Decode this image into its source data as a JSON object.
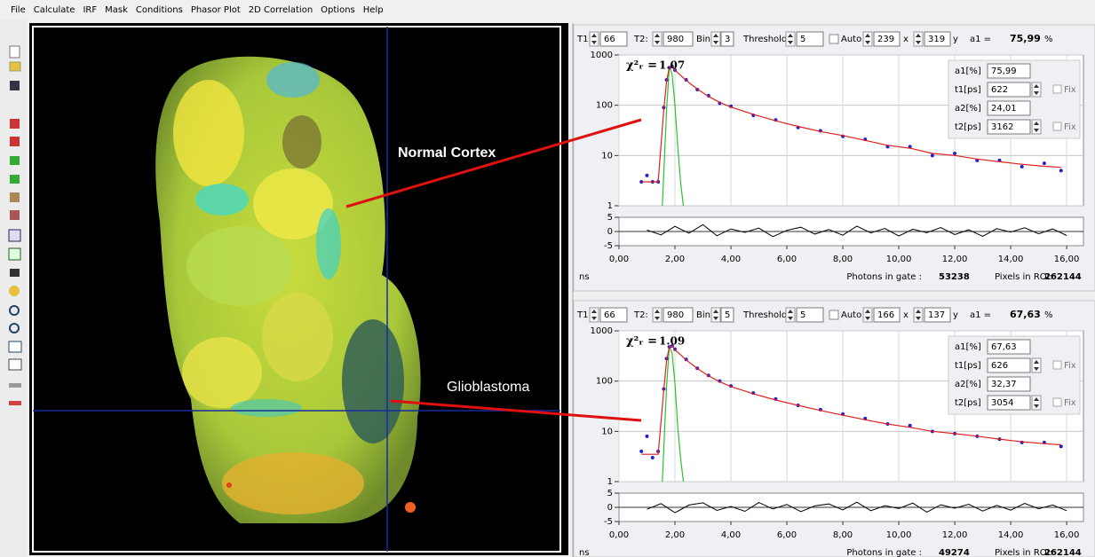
{
  "menu": [
    "File",
    "Calculate",
    "IRF",
    "Mask",
    "Conditions",
    "Phasor Plot",
    "2D Correlation",
    "Options",
    "Help"
  ],
  "image": {
    "annotations": [
      "Normal Cortex",
      "Glioblastoma"
    ]
  },
  "panels": [
    {
      "controls": {
        "t1_label": "T1:",
        "t1": 66,
        "t2_label": "T2:",
        "t2": 980,
        "bin_label": "Bin:",
        "bin": 3,
        "threshold_label": "Threshold:",
        "threshold": 5,
        "auto_label": "Auto",
        "x": 239,
        "x_label": "x",
        "y": 319,
        "y_label": "y",
        "a1_label": "a1 =",
        "a1": "75,99",
        "a1_unit": "%"
      },
      "fit_params": [
        {
          "label": "a1[%]",
          "value": "75,99"
        },
        {
          "label": "t1[ps]",
          "value": "622",
          "fix": "Fix"
        },
        {
          "label": "a2[%]",
          "value": "24,01"
        },
        {
          "label": "t2[ps]",
          "value": "3162",
          "fix": "Fix"
        }
      ],
      "chi_label": "χ²ᵣ =",
      "chi": "1.07",
      "plot": {
        "log_y": true,
        "ylim": [
          1,
          1000
        ],
        "yticks": [
          1,
          10,
          100,
          1000
        ],
        "xlim": [
          0,
          16.6
        ],
        "xticks": [
          {
            "value": 0,
            "label": "0,00"
          },
          {
            "value": 2,
            "label": "2,00"
          },
          {
            "value": 4,
            "label": "4,00"
          },
          {
            "value": 6,
            "label": "6,00"
          },
          {
            "value": 8,
            "label": "8,00"
          },
          {
            "value": 10,
            "label": "10,00"
          },
          {
            "value": 12,
            "label": "12,00"
          },
          {
            "value": 14,
            "label": "14,00"
          },
          {
            "value": 16,
            "label": "16,00"
          }
        ],
        "x_unit": "ns",
        "x": [
          0.8,
          1.0,
          1.2,
          1.4,
          1.6,
          1.7,
          1.8,
          1.9,
          2.0,
          2.4,
          2.8,
          3.2,
          3.6,
          4.0,
          4.8,
          5.6,
          6.4,
          7.2,
          8.0,
          8.8,
          9.6,
          10.4,
          11.2,
          12.0,
          12.8,
          13.6,
          14.4,
          15.2,
          15.8
        ],
        "counts": [
          3,
          4,
          3,
          3,
          90,
          320,
          560,
          590,
          500,
          320,
          205,
          155,
          110,
          95,
          63,
          51,
          36,
          31,
          24,
          21,
          15,
          15,
          10,
          11,
          8,
          8,
          6,
          7,
          5
        ],
        "fit": [
          3,
          3,
          3,
          3,
          80,
          300,
          570,
          600,
          500,
          313,
          210,
          150,
          114,
          92,
          66,
          49,
          38,
          30,
          25,
          20,
          16,
          14,
          11,
          10,
          8.5,
          7.5,
          6.7,
          6.1,
          5.8
        ],
        "irf_x": [
          1.55,
          1.7,
          1.8,
          1.9,
          2.0,
          2.1,
          2.2,
          2.3
        ],
        "irf": [
          1,
          80,
          600,
          400,
          100,
          15,
          3,
          1
        ],
        "residual_ylim": [
          -5,
          5
        ],
        "residual_yticks": [
          -5,
          0,
          5
        ],
        "residual_x": [
          1.0,
          1.5,
          2.0,
          2.5,
          3.0,
          3.5,
          4.0,
          4.5,
          5.0,
          5.5,
          6.0,
          6.5,
          7.0,
          7.5,
          8.0,
          8.5,
          9.0,
          9.5,
          10.0,
          10.5,
          11.0,
          11.5,
          12.0,
          12.5,
          13.0,
          13.5,
          14.0,
          14.5,
          15.0,
          15.5,
          16.0
        ],
        "residuals": [
          0.5,
          -1.2,
          1.8,
          -0.6,
          2.4,
          -1.5,
          0.9,
          -0.3,
          1.2,
          -1.8,
          0.4,
          1.5,
          -0.9,
          0.7,
          -1.3,
          1.9,
          -0.5,
          1.1,
          -1.6,
          0.8,
          -0.4,
          1.4,
          -1.1,
          0.6,
          -1.7,
          1.0,
          -0.2,
          1.3,
          -0.8,
          0.9,
          -1.4
        ]
      },
      "footer": {
        "photons_label": "Photons in gate :",
        "photons": 53238,
        "pixels_label": "Pixels in ROI:",
        "pixels": 262144
      }
    },
    {
      "controls": {
        "t1_label": "T1:",
        "t1": 66,
        "t2_label": "T2:",
        "t2": 980,
        "bin_label": "Bin:",
        "bin": 5,
        "threshold_label": "Threshold:",
        "threshold": 5,
        "auto_label": "Auto",
        "x": 166,
        "x_label": "x",
        "y": 137,
        "y_label": "y",
        "a1_label": "a1 =",
        "a1": "67,63",
        "a1_unit": "%"
      },
      "fit_params": [
        {
          "label": "a1[%]",
          "value": "67,63"
        },
        {
          "label": "t1[ps]",
          "value": "626",
          "fix": "Fix"
        },
        {
          "label": "a2[%]",
          "value": "32,37"
        },
        {
          "label": "t2[ps]",
          "value": "3054",
          "fix": "Fix"
        }
      ],
      "chi_label": "χ²ᵣ =",
      "chi": "1.09",
      "plot": {
        "log_y": true,
        "ylim": [
          1,
          1000
        ],
        "yticks": [
          1,
          10,
          100,
          1000
        ],
        "xlim": [
          0,
          16.6
        ],
        "xticks": [
          {
            "value": 0,
            "label": "0,00"
          },
          {
            "value": 2,
            "label": "2,00"
          },
          {
            "value": 4,
            "label": "4,00"
          },
          {
            "value": 6,
            "label": "6,00"
          },
          {
            "value": 8,
            "label": "8,00"
          },
          {
            "value": 10,
            "label": "10,00"
          },
          {
            "value": 12,
            "label": "12,00"
          },
          {
            "value": 14,
            "label": "14,00"
          },
          {
            "value": 16,
            "label": "16,00"
          }
        ],
        "x_unit": "ns",
        "x": [
          0.8,
          1.0,
          1.2,
          1.4,
          1.6,
          1.7,
          1.8,
          1.9,
          2.0,
          2.4,
          2.8,
          3.2,
          3.6,
          4.0,
          4.8,
          5.6,
          6.4,
          7.2,
          8.0,
          8.8,
          9.6,
          10.4,
          11.2,
          12.0,
          12.8,
          13.6,
          14.4,
          15.2,
          15.8
        ],
        "counts": [
          4,
          8,
          3,
          4,
          70,
          280,
          480,
          500,
          430,
          270,
          180,
          130,
          100,
          80,
          58,
          44,
          33,
          27,
          22,
          18,
          14,
          13,
          10,
          9,
          8,
          7,
          6,
          6,
          5
        ],
        "fit": [
          3.5,
          3.5,
          3.5,
          3.5,
          65,
          260,
          480,
          500,
          420,
          265,
          178,
          128,
          97,
          78,
          56,
          42,
          33,
          26,
          21,
          17,
          14,
          12,
          10,
          9,
          8,
          7,
          6.2,
          5.7,
          5.4
        ],
        "irf_x": [
          1.55,
          1.7,
          1.8,
          1.9,
          2.0,
          2.1,
          2.2,
          2.3
        ],
        "irf": [
          1,
          80,
          500,
          350,
          90,
          12,
          3,
          1
        ],
        "residual_ylim": [
          -5,
          5
        ],
        "residual_yticks": [
          -5,
          0,
          5
        ],
        "residual_x": [
          1.0,
          1.5,
          2.0,
          2.5,
          3.0,
          3.5,
          4.0,
          4.5,
          5.0,
          5.5,
          6.0,
          6.5,
          7.0,
          7.5,
          8.0,
          8.5,
          9.0,
          9.5,
          10.0,
          10.5,
          11.0,
          11.5,
          12.0,
          12.5,
          13.0,
          13.5,
          14.0,
          14.5,
          15.0,
          15.5,
          16.0
        ],
        "residuals": [
          -0.7,
          1.3,
          -1.9,
          0.8,
          1.6,
          -1.1,
          0.3,
          -1.4,
          1.7,
          -0.6,
          1.0,
          -1.5,
          0.5,
          1.2,
          -0.9,
          1.8,
          -1.2,
          0.6,
          -0.4,
          1.5,
          -1.7,
          0.9,
          -0.3,
          1.1,
          -1.3,
          0.7,
          -1.0,
          1.4,
          -0.5,
          0.8,
          -1.2
        ]
      },
      "footer": {
        "photons_label": "Photons in gate :",
        "photons": 49274,
        "pixels_label": "Pixels in ROI:",
        "pixels": 262144
      }
    }
  ]
}
